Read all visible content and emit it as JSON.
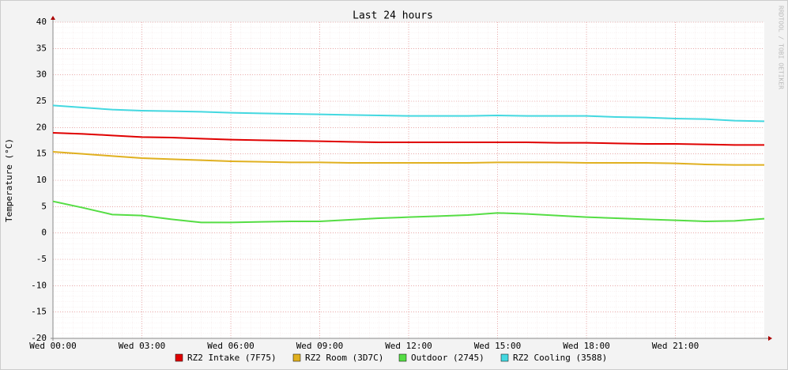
{
  "chart_data": {
    "type": "line",
    "title": "Last 24 hours",
    "y_label": "Temperature (°C)",
    "watermark": "RRDTOOL / TOBI OETIKER",
    "x": [
      0,
      1,
      2,
      3,
      4,
      5,
      6,
      7,
      8,
      9,
      10,
      11,
      12,
      13,
      14,
      15,
      16,
      17,
      18,
      19,
      20,
      21,
      22,
      23,
      24
    ],
    "xlim": [
      0,
      24
    ],
    "xticks": [
      {
        "value": 0,
        "label": "Wed 00:00"
      },
      {
        "value": 3,
        "label": "Wed 03:00"
      },
      {
        "value": 6,
        "label": "Wed 06:00"
      },
      {
        "value": 9,
        "label": "Wed 09:00"
      },
      {
        "value": 12,
        "label": "Wed 12:00"
      },
      {
        "value": 15,
        "label": "Wed 15:00"
      },
      {
        "value": 18,
        "label": "Wed 18:00"
      },
      {
        "value": 21,
        "label": "Wed 21:00"
      }
    ],
    "ylim": [
      -20,
      40
    ],
    "yticks": [
      -20,
      -15,
      -10,
      -5,
      0,
      5,
      10,
      15,
      20,
      25,
      30,
      35,
      40
    ],
    "grid": true,
    "series": [
      {
        "name": "RZ2 Intake (7F75)",
        "color": "#e00000",
        "values": [
          19.0,
          18.8,
          18.5,
          18.2,
          18.1,
          17.9,
          17.7,
          17.6,
          17.5,
          17.4,
          17.3,
          17.2,
          17.2,
          17.2,
          17.2,
          17.2,
          17.2,
          17.1,
          17.1,
          17.0,
          16.9,
          16.9,
          16.8,
          16.7,
          16.7
        ]
      },
      {
        "name": "RZ2 Room (3D7C)",
        "color": "#e0b020",
        "values": [
          15.4,
          15.0,
          14.6,
          14.2,
          14.0,
          13.8,
          13.6,
          13.5,
          13.4,
          13.4,
          13.3,
          13.3,
          13.3,
          13.3,
          13.3,
          13.4,
          13.4,
          13.4,
          13.3,
          13.3,
          13.3,
          13.2,
          13.0,
          12.9,
          12.9
        ]
      },
      {
        "name": "Outdoor (2745)",
        "color": "#55dd44",
        "values": [
          6.0,
          4.8,
          3.5,
          3.3,
          2.6,
          2.0,
          2.0,
          2.1,
          2.2,
          2.2,
          2.5,
          2.8,
          3.0,
          3.2,
          3.4,
          3.8,
          3.6,
          3.3,
          3.0,
          2.8,
          2.6,
          2.4,
          2.2,
          2.3,
          2.7
        ]
      },
      {
        "name": "RZ2 Cooling (3588)",
        "color": "#44d8e0",
        "values": [
          24.2,
          23.8,
          23.4,
          23.2,
          23.1,
          23.0,
          22.8,
          22.7,
          22.6,
          22.5,
          22.4,
          22.3,
          22.2,
          22.2,
          22.2,
          22.3,
          22.2,
          22.2,
          22.2,
          22.0,
          21.9,
          21.7,
          21.6,
          21.3,
          21.2
        ]
      }
    ]
  }
}
